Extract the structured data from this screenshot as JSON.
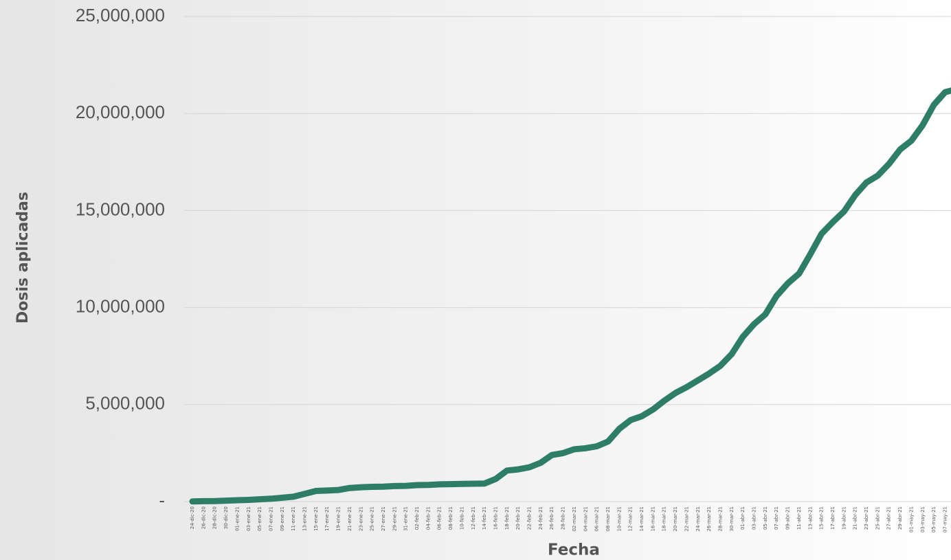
{
  "chart_data": {
    "type": "line",
    "x_label": "Fecha",
    "y_label": "Dosis aplicadas",
    "categories": [
      "24-dic-20",
      "26-dic-20",
      "28-dic-20",
      "30-dic-20",
      "01-ene-21",
      "03-ene-21",
      "05-ene-21",
      "07-ene-21",
      "09-ene-21",
      "11-ene-21",
      "13-ene-21",
      "15-ene-21",
      "17-ene-21",
      "19-ene-21",
      "21-ene-21",
      "23-ene-21",
      "25-ene-21",
      "27-ene-21",
      "29-ene-21",
      "31-ene-21",
      "02-feb-21",
      "04-feb-21",
      "06-feb-21",
      "08-feb-21",
      "10-feb-21",
      "12-feb-21",
      "14-feb-21",
      "16-feb-21",
      "18-feb-21",
      "20-feb-21",
      "22-feb-21",
      "24-feb-21",
      "26-feb-21",
      "28-feb-21",
      "02-mar-21",
      "04-mar-21",
      "06-mar-21",
      "08-mar-21",
      "10-mar-21",
      "12-mar-21",
      "14-mar-21",
      "16-mar-21",
      "18-mar-21",
      "20-mar-21",
      "22-mar-21",
      "24-mar-21",
      "26-mar-21",
      "28-mar-21",
      "30-mar-21",
      "01-abr-21",
      "03-abr-21",
      "05-abr-21",
      "07-abr-21",
      "09-abr-21",
      "11-abr-21",
      "13-abr-21",
      "15-abr-21",
      "17-abr-21",
      "19-abr-21",
      "21-abr-21",
      "23-abr-21",
      "25-abr-21",
      "27-abr-21",
      "29-abr-21",
      "01-may-21",
      "03-may-21",
      "05-may-21",
      "07-may-21",
      "09-may-21"
    ],
    "values": [
      10000,
      20000,
      30000,
      50000,
      70000,
      90000,
      120000,
      150000,
      200000,
      250000,
      400000,
      550000,
      570000,
      600000,
      700000,
      740000,
      760000,
      770000,
      800000,
      810000,
      850000,
      860000,
      890000,
      900000,
      910000,
      920000,
      930000,
      1170000,
      1600000,
      1660000,
      1770000,
      2000000,
      2400000,
      2500000,
      2700000,
      2750000,
      2850000,
      3100000,
      3750000,
      4200000,
      4400000,
      4750000,
      5200000,
      5600000,
      5900000,
      6250000,
      6600000,
      7000000,
      7600000,
      8500000,
      9150000,
      9650000,
      10600000,
      11250000,
      11750000,
      12750000,
      13800000,
      14400000,
      14950000,
      15800000,
      16450000,
      16800000,
      17400000,
      18150000,
      18600000,
      19400000,
      20450000,
      21100000,
      21250000
    ],
    "color": "#2e7d67",
    "ylim": [
      0,
      25000000
    ],
    "yticks": [
      {
        "value": 0,
        "label": "-"
      },
      {
        "value": 5000000,
        "label": "5,000,000"
      },
      {
        "value": 10000000,
        "label": "10,000,000"
      },
      {
        "value": 15000000,
        "label": "15,000,000"
      },
      {
        "value": 20000000,
        "label": "20,000,000"
      },
      {
        "value": 25000000,
        "label": "25,000,000"
      }
    ],
    "grid": true
  }
}
